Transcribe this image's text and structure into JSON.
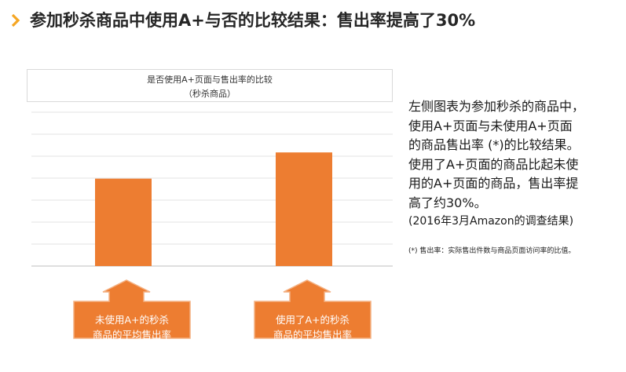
{
  "header": {
    "title": "参加秒杀商品中使用A+与否的比较结果：售出率提高了30%",
    "accent_color": "#f5a623",
    "chevron_icon": "chevron-right-icon"
  },
  "chart_data": {
    "type": "bar",
    "title": "是否使用A+页面与售出率的比较",
    "subtitle": "（秒杀商品）",
    "categories": [
      "未使用A+的秒杀商品的平均售出率",
      "使用了A+的秒杀商品的平均售出率"
    ],
    "values": [
      100,
      130
    ],
    "ylim": [
      0,
      176
    ],
    "grid": true,
    "bar_color": "#ed7d31",
    "xlabel": "",
    "ylabel": ""
  },
  "callouts": [
    {
      "line1": "未使用A+的秒杀",
      "line2": "商品的平均售出率"
    },
    {
      "line1": "使用了A+的秒杀",
      "line2": "商品的平均售出率"
    }
  ],
  "description": {
    "lines": [
      "左侧图表为参加秒杀的商品中，",
      "使用A+页面与未使用A+页面",
      "的商品售出率 (*)的比较结果。",
      "使用了A+页面的商品比起未使",
      "用的A+页面的商品，售出率提",
      "高了约30%。"
    ],
    "source": "(2016年3月Amazon的调查结果)"
  },
  "footnote": "(*) 售出率：实际售出件数与商品页面访问率的比值。"
}
